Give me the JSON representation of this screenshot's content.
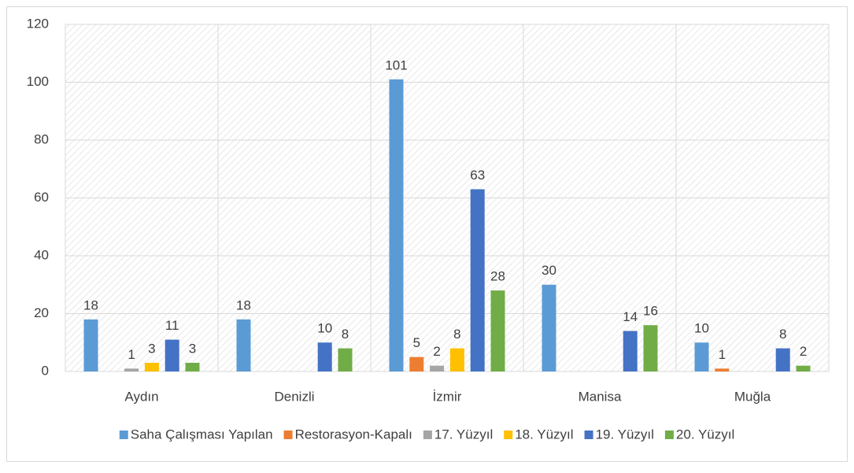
{
  "chart_data": {
    "type": "bar",
    "categories": [
      "Aydın",
      "Denizli",
      "İzmir",
      "Manisa",
      "Muğla"
    ],
    "series": [
      {
        "name": "Saha Çalışması Yapılan",
        "color": "#5b9bd5",
        "values": [
          18,
          18,
          101,
          30,
          10
        ]
      },
      {
        "name": "Restorasyon-Kapalı",
        "color": "#ed7d31",
        "values": [
          null,
          null,
          5,
          null,
          1
        ]
      },
      {
        "name": "17. Yüzyıl",
        "color": "#a5a5a5",
        "values": [
          1,
          null,
          2,
          null,
          null
        ]
      },
      {
        "name": "18. Yüzyıl",
        "color": "#ffc000",
        "values": [
          3,
          null,
          8,
          null,
          null
        ]
      },
      {
        "name": "19. Yüzyıl",
        "color": "#4472c4",
        "values": [
          11,
          10,
          63,
          14,
          8
        ]
      },
      {
        "name": "20. Yüzyıl",
        "color": "#70ad47",
        "values": [
          3,
          8,
          28,
          16,
          2
        ]
      }
    ],
    "ylim": [
      0,
      120
    ],
    "yticks": [
      0,
      20,
      40,
      60,
      80,
      100,
      120
    ],
    "grid": true,
    "legend": "bottom"
  }
}
